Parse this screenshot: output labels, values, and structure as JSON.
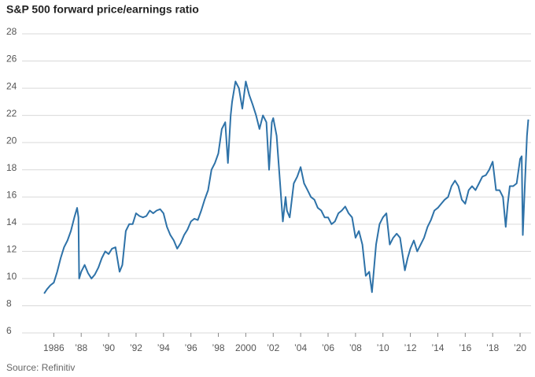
{
  "chart_data": {
    "type": "line",
    "title": "S&P 500 forward price/earnings ratio",
    "source": "Source: Refinitiv",
    "x": [
      1985.3,
      1985.5,
      1985.75,
      1986.0,
      1986.25,
      1986.5,
      1986.75,
      1987.0,
      1987.25,
      1987.5,
      1987.7,
      1987.8,
      1987.85,
      1988.0,
      1988.25,
      1988.5,
      1988.75,
      1989.0,
      1989.25,
      1989.5,
      1989.75,
      1990.0,
      1990.25,
      1990.5,
      1990.8,
      1991.0,
      1991.25,
      1991.5,
      1991.75,
      1992.0,
      1992.25,
      1992.5,
      1992.75,
      1993.0,
      1993.25,
      1993.5,
      1993.75,
      1994.0,
      1994.25,
      1994.5,
      1994.75,
      1995.0,
      1995.25,
      1995.5,
      1995.75,
      1996.0,
      1996.25,
      1996.5,
      1996.75,
      1997.0,
      1997.25,
      1997.5,
      1997.75,
      1998.0,
      1998.25,
      1998.5,
      1998.7,
      1998.9,
      1999.0,
      1999.25,
      1999.5,
      1999.75,
      2000.0,
      2000.25,
      2000.5,
      2000.75,
      2001.0,
      2001.25,
      2001.5,
      2001.7,
      2001.9,
      2002.0,
      2002.25,
      2002.5,
      2002.7,
      2002.9,
      2003.0,
      2003.2,
      2003.5,
      2003.75,
      2004.0,
      2004.25,
      2004.5,
      2004.75,
      2005.0,
      2005.25,
      2005.5,
      2005.75,
      2006.0,
      2006.25,
      2006.5,
      2006.75,
      2007.0,
      2007.25,
      2007.5,
      2007.75,
      2008.0,
      2008.25,
      2008.5,
      2008.75,
      2009.0,
      2009.2,
      2009.5,
      2009.75,
      2010.0,
      2010.25,
      2010.5,
      2010.75,
      2011.0,
      2011.25,
      2011.6,
      2011.8,
      2012.0,
      2012.25,
      2012.5,
      2012.75,
      2013.0,
      2013.25,
      2013.5,
      2013.75,
      2014.0,
      2014.25,
      2014.5,
      2014.75,
      2015.0,
      2015.25,
      2015.5,
      2015.75,
      2016.0,
      2016.25,
      2016.5,
      2016.75,
      2017.0,
      2017.25,
      2017.5,
      2017.75,
      2018.0,
      2018.25,
      2018.5,
      2018.75,
      2018.95,
      2019.1,
      2019.25,
      2019.5,
      2019.75,
      2020.0,
      2020.12,
      2020.2,
      2020.35,
      2020.5,
      2020.6
    ],
    "series": [
      {
        "name": "S&P 500 forward P/E",
        "color": "#2e72a8",
        "values": [
          8.9,
          9.2,
          9.5,
          9.7,
          10.5,
          11.5,
          12.3,
          12.8,
          13.5,
          14.5,
          15.2,
          14.5,
          10.0,
          10.5,
          11.0,
          10.4,
          10.0,
          10.3,
          10.8,
          11.5,
          12.0,
          11.8,
          12.2,
          12.3,
          10.5,
          11.0,
          13.5,
          14.0,
          14.0,
          14.8,
          14.6,
          14.5,
          14.6,
          15.0,
          14.8,
          15.0,
          15.1,
          14.8,
          13.8,
          13.2,
          12.8,
          12.2,
          12.6,
          13.2,
          13.6,
          14.2,
          14.4,
          14.3,
          15.0,
          15.8,
          16.5,
          18.0,
          18.5,
          19.2,
          21.0,
          21.5,
          18.5,
          22.0,
          23.0,
          24.5,
          24.0,
          22.5,
          24.5,
          23.5,
          22.8,
          22.0,
          21.0,
          22.0,
          21.5,
          18.0,
          21.5,
          21.8,
          20.5,
          17.0,
          14.2,
          16.0,
          15.0,
          14.5,
          17.0,
          17.5,
          18.2,
          17.0,
          16.5,
          16.0,
          15.8,
          15.2,
          15.0,
          14.5,
          14.5,
          14.0,
          14.2,
          14.8,
          15.0,
          15.3,
          14.8,
          14.5,
          13.0,
          13.5,
          12.5,
          10.2,
          10.5,
          9.0,
          12.5,
          14.0,
          14.5,
          14.8,
          12.5,
          13.0,
          13.3,
          13.0,
          10.6,
          11.5,
          12.2,
          12.8,
          12.0,
          12.5,
          13.0,
          13.8,
          14.3,
          15.0,
          15.2,
          15.5,
          15.8,
          16.0,
          16.8,
          17.2,
          16.8,
          15.8,
          15.5,
          16.5,
          16.8,
          16.5,
          17.0,
          17.5,
          17.6,
          18.0,
          18.6,
          16.5,
          16.5,
          16.0,
          13.8,
          15.5,
          16.8,
          16.8,
          17.0,
          18.8,
          19.0,
          13.2,
          17.0,
          20.5,
          21.7
        ]
      }
    ],
    "xlim": [
      1983.8,
      2020.8
    ],
    "xticks": [
      1986,
      {
        "value": 1988,
        "label": "’88"
      },
      {
        "value": 1990,
        "label": "’90"
      },
      {
        "value": 1992,
        "label": "’92"
      },
      {
        "value": 1994,
        "label": "’94"
      },
      {
        "value": 1996,
        "label": "’96"
      },
      {
        "value": 1998,
        "label": "’98"
      },
      2000,
      {
        "value": 2002,
        "label": "’02"
      },
      {
        "value": 2004,
        "label": "’04"
      },
      {
        "value": 2006,
        "label": "’06"
      },
      {
        "value": 2008,
        "label": "’08"
      },
      {
        "value": 2010,
        "label": "’10"
      },
      {
        "value": 2012,
        "label": "’12"
      },
      {
        "value": 2014,
        "label": "’14"
      },
      {
        "value": 2016,
        "label": "’16"
      },
      {
        "value": 2018,
        "label": "’18"
      },
      {
        "value": 2020,
        "label": "’20"
      }
    ],
    "ylim": [
      6,
      28
    ],
    "yticks": [
      6,
      8,
      10,
      12,
      14,
      16,
      18,
      20,
      22,
      24,
      26,
      28
    ],
    "grid": true
  }
}
